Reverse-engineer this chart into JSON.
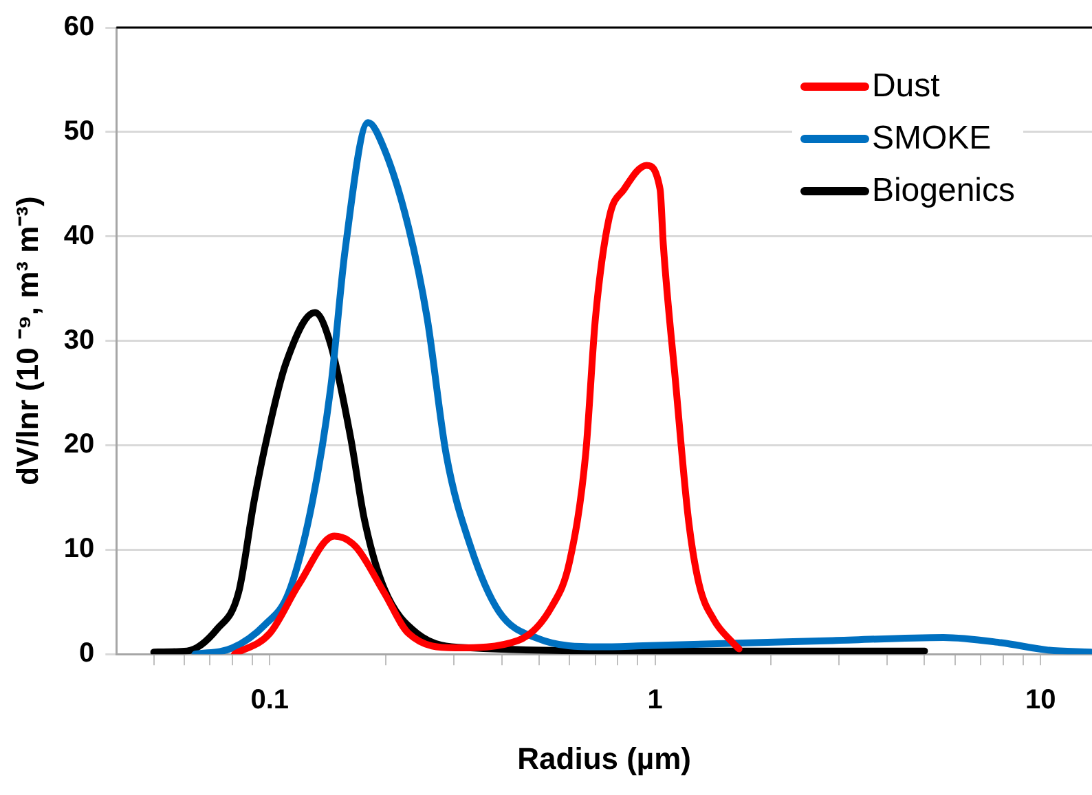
{
  "chart_data": {
    "type": "line",
    "xlabel": "Radius (µm)",
    "ylabel": "dV/lnr (10 ⁻⁹, m³ m⁻³)",
    "log": "x",
    "xlim": [
      0.04,
      13.6
    ],
    "ylim": [
      0,
      60
    ],
    "yticks": [
      0,
      10,
      20,
      30,
      40,
      50,
      60
    ],
    "xticks": [
      {
        "value": 0.05,
        "label": null
      },
      {
        "value": 0.06,
        "label": null
      },
      {
        "value": 0.07,
        "label": null
      },
      {
        "value": 0.08,
        "label": null
      },
      {
        "value": 0.09,
        "label": null
      },
      0.1,
      {
        "value": 0.2,
        "label": null
      },
      {
        "value": 0.3,
        "label": null
      },
      {
        "value": 0.4,
        "label": null
      },
      {
        "value": 0.5,
        "label": null
      },
      {
        "value": 0.6,
        "label": null
      },
      {
        "value": 0.7,
        "label": null
      },
      {
        "value": 0.8,
        "label": null
      },
      {
        "value": 0.9,
        "label": null
      },
      1,
      {
        "value": 2,
        "label": null
      },
      {
        "value": 3,
        "label": null
      },
      {
        "value": 4,
        "label": null
      },
      {
        "value": 5,
        "label": null
      },
      {
        "value": 6,
        "label": null
      },
      {
        "value": 7,
        "label": null
      },
      {
        "value": 8,
        "label": null
      },
      {
        "value": 9,
        "label": null
      },
      10
    ],
    "grid": "y",
    "legend": "top right",
    "marker": "none",
    "line_style": "solid",
    "series": [
      {
        "name": "Dust",
        "color": "#ff0000",
        "x": [
          0.081,
          0.1,
          0.119,
          0.147,
          0.167,
          0.198,
          0.229,
          0.304,
          0.44,
          0.54,
          0.6,
          0.66,
          0.7,
          0.76,
          0.83,
          0.95,
          1.03,
          1.05,
          1.13,
          1.22,
          1.3,
          1.42,
          1.59,
          1.65
        ],
        "values": [
          0,
          2,
          6.7,
          11.3,
          10.3,
          5.9,
          2,
          0.6,
          1.3,
          4.6,
          8.9,
          19.1,
          32.2,
          41.8,
          44.5,
          46.8,
          44.5,
          39.2,
          26,
          12.9,
          6.7,
          3.3,
          1.1,
          0.5
        ]
      },
      {
        "name": "SMOKE",
        "color": "#0070c0",
        "x": [
          0.064,
          0.08,
          0.097,
          0.112,
          0.129,
          0.144,
          0.157,
          0.18,
          0.198,
          0.229,
          0.256,
          0.287,
          0.332,
          0.393,
          0.496,
          0.716,
          0.93,
          2.89,
          5.6,
          7.9,
          10.4,
          13.5
        ],
        "values": [
          0,
          0.6,
          2.8,
          5.9,
          14.6,
          25.6,
          38.8,
          50.9,
          48.4,
          40.9,
          32.2,
          19.1,
          10.3,
          4.1,
          1.5,
          0.7,
          0.8,
          1.3,
          1.6,
          1.1,
          0.4,
          0.2
        ]
      },
      {
        "name": "Biogenics",
        "color": "#000000",
        "x": [
          0.05,
          0.061,
          0.073,
          0.083,
          0.091,
          0.099,
          0.11,
          0.131,
          0.144,
          0.162,
          0.176,
          0.198,
          0.241,
          0.332,
          1,
          5
        ],
        "values": [
          0.2,
          0.3,
          2.4,
          5.9,
          14.6,
          21.2,
          27.8,
          32.7,
          29.6,
          20.8,
          12.9,
          6.3,
          2,
          0.6,
          0.3,
          0.3
        ]
      }
    ]
  }
}
